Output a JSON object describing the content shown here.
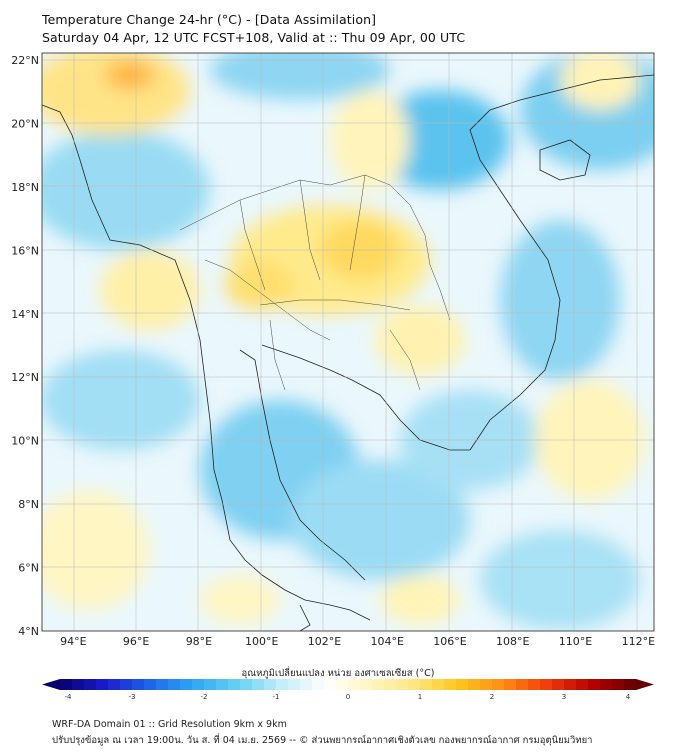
{
  "title_line1": "Temperature Change 24-hr (°C) - [Data Assimilation]",
  "title_line2": "Saturday 04 Apr, 12 UTC FCST+108, Valid at :: Thu 09 Apr, 00 UTC",
  "lat_labels": [
    "22°N",
    "20°N",
    "18°N",
    "16°N",
    "14°N",
    "12°N",
    "10°N",
    "8°N",
    "6°N",
    "4°N"
  ],
  "lon_labels": [
    "94°E",
    "96°E",
    "98°E",
    "100°E",
    "102°E",
    "104°E",
    "106°E",
    "108°E",
    "110°E",
    "112°E"
  ],
  "lat_range": [
    4,
    22
  ],
  "lon_range": [
    93,
    112.5
  ],
  "colorbar": {
    "title": "อุณหภูมิเปลี่ยนแปลง หน่วย องศาเซลเซียส (°C)",
    "ticks": [
      "-4",
      "-3",
      "-2",
      "-1",
      "0",
      "1",
      "2",
      "3",
      "4"
    ],
    "range": [
      -4,
      4
    ],
    "colors": [
      "#08006b",
      "#1a1acd",
      "#1e64e6",
      "#2fa5f5",
      "#66d2f2",
      "#c2eefa",
      "#ffffff",
      "#fff6c2",
      "#ffe680",
      "#ffc61e",
      "#ff8c14",
      "#f03c0a",
      "#b40000",
      "#640000"
    ]
  },
  "footer_line1": "WRF-DA Domain 01 :: Grid Resolution 9km x 9km",
  "footer_line2": "ปรับปรุงข้อมูล ณ เวลา 19:00น. วัน ส. ที่ 04 เม.ย. 2569 -- © ส่วนพยากรณ์อากาศเชิงตัวเลข กองพยากรณ์อากาศ กรมอุตุนิยมวิทยา"
}
